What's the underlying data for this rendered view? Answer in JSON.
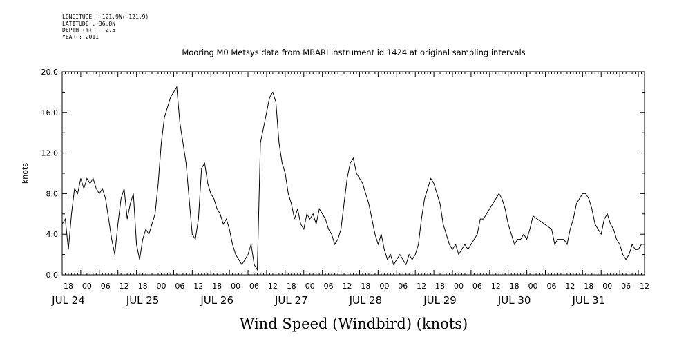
{
  "header_lines": [
    "LONGITUDE : 121.9W(-121.9)",
    "LATITUDE : 36.8N",
    "DEPTH (m) : -2.5",
    "YEAR : 2011"
  ],
  "chart_data": {
    "type": "line",
    "title": "Mooring M0 Metsys data from MBARI instrument id 1424 at original sampling intervals",
    "xlabel": "Wind Speed (Windbird) (knots)",
    "ylabel": "knots",
    "xlim_hours": [
      0,
      188
    ],
    "ylim": [
      0,
      20
    ],
    "y_ticks": [
      "0.0",
      "4.0",
      "8.0",
      "12.0",
      "16.0",
      "20.0"
    ],
    "x_hour_ticks": [
      "18",
      "00",
      "06",
      "12",
      "18",
      "00",
      "06",
      "12",
      "18",
      "00",
      "06",
      "12",
      "18",
      "00",
      "06",
      "12",
      "18",
      "00",
      "06",
      "12",
      "18",
      "00",
      "06",
      "12",
      "18",
      "00",
      "06",
      "12",
      "18",
      "00",
      "06",
      "12"
    ],
    "x_day_labels": [
      "JUL 24",
      "JUL 25",
      "JUL 26",
      "JUL 27",
      "JUL 28",
      "JUL 29",
      "JUL 30",
      "JUL 31"
    ],
    "series": [
      {
        "values": [
          [
            0,
            5.0
          ],
          [
            1,
            5.5
          ],
          [
            2,
            2.5
          ],
          [
            3,
            6.0
          ],
          [
            4,
            8.5
          ],
          [
            5,
            8.0
          ],
          [
            6,
            9.5
          ],
          [
            7,
            8.5
          ],
          [
            8,
            9.5
          ],
          [
            9,
            9.0
          ],
          [
            10,
            9.5
          ],
          [
            11,
            8.5
          ],
          [
            12,
            8.0
          ],
          [
            13,
            8.5
          ],
          [
            14,
            7.5
          ],
          [
            15,
            5.5
          ],
          [
            16,
            3.5
          ],
          [
            17,
            2.0
          ],
          [
            18,
            5.0
          ],
          [
            19,
            7.5
          ],
          [
            20,
            8.5
          ],
          [
            21,
            5.5
          ],
          [
            22,
            7.0
          ],
          [
            23,
            8.0
          ],
          [
            24,
            3.0
          ],
          [
            25,
            1.5
          ],
          [
            26,
            3.5
          ],
          [
            27,
            4.5
          ],
          [
            28,
            4.0
          ],
          [
            29,
            5.0
          ],
          [
            30,
            6.0
          ],
          [
            31,
            9.0
          ],
          [
            32,
            13.0
          ],
          [
            33,
            15.5
          ],
          [
            34,
            16.5
          ],
          [
            35,
            17.5
          ],
          [
            36,
            18.0
          ],
          [
            37,
            18.5
          ],
          [
            38,
            15.0
          ],
          [
            39,
            13.0
          ],
          [
            40,
            11.0
          ],
          [
            41,
            7.5
          ],
          [
            42,
            4.0
          ],
          [
            43,
            3.5
          ],
          [
            44,
            5.5
          ],
          [
            45,
            10.5
          ],
          [
            46,
            11.0
          ],
          [
            47,
            9.0
          ],
          [
            48,
            8.0
          ],
          [
            49,
            7.5
          ],
          [
            50,
            6.5
          ],
          [
            51,
            6.0
          ],
          [
            52,
            5.0
          ],
          [
            53,
            5.5
          ],
          [
            54,
            4.5
          ],
          [
            55,
            3.0
          ],
          [
            56,
            2.0
          ],
          [
            57,
            1.5
          ],
          [
            58,
            1.0
          ],
          [
            59,
            1.5
          ],
          [
            60,
            2.0
          ],
          [
            61,
            3.0
          ],
          [
            62,
            1.0
          ],
          [
            63,
            0.5
          ],
          [
            64,
            13.0
          ],
          [
            65,
            14.5
          ],
          [
            66,
            16.0
          ],
          [
            67,
            17.5
          ],
          [
            68,
            18.0
          ],
          [
            69,
            17.0
          ],
          [
            70,
            13.0
          ],
          [
            71,
            11.0
          ],
          [
            72,
            10.0
          ],
          [
            73,
            8.0
          ],
          [
            74,
            7.0
          ],
          [
            75,
            5.5
          ],
          [
            76,
            6.5
          ],
          [
            77,
            5.0
          ],
          [
            78,
            4.5
          ],
          [
            79,
            6.0
          ],
          [
            80,
            5.5
          ],
          [
            81,
            6.0
          ],
          [
            82,
            5.0
          ],
          [
            83,
            6.5
          ],
          [
            84,
            6.0
          ],
          [
            85,
            5.5
          ],
          [
            86,
            4.5
          ],
          [
            87,
            4.0
          ],
          [
            88,
            3.0
          ],
          [
            89,
            3.5
          ],
          [
            90,
            4.5
          ],
          [
            91,
            7.0
          ],
          [
            92,
            9.5
          ],
          [
            93,
            11.0
          ],
          [
            94,
            11.5
          ],
          [
            95,
            10.0
          ],
          [
            96,
            9.5
          ],
          [
            97,
            9.0
          ],
          [
            98,
            8.0
          ],
          [
            99,
            7.0
          ],
          [
            100,
            5.5
          ],
          [
            101,
            4.0
          ],
          [
            102,
            3.0
          ],
          [
            103,
            4.0
          ],
          [
            104,
            2.5
          ],
          [
            105,
            1.5
          ],
          [
            106,
            2.0
          ],
          [
            107,
            1.0
          ],
          [
            108,
            1.5
          ],
          [
            109,
            2.0
          ],
          [
            110,
            1.5
          ],
          [
            111,
            1.0
          ],
          [
            112,
            2.0
          ],
          [
            113,
            1.5
          ],
          [
            114,
            2.0
          ],
          [
            115,
            3.0
          ],
          [
            116,
            5.5
          ],
          [
            117,
            7.5
          ],
          [
            118,
            8.5
          ],
          [
            119,
            9.5
          ],
          [
            120,
            9.0
          ],
          [
            121,
            8.0
          ],
          [
            122,
            7.0
          ],
          [
            123,
            5.0
          ],
          [
            124,
            4.0
          ],
          [
            125,
            3.0
          ],
          [
            126,
            2.5
          ],
          [
            127,
            3.0
          ],
          [
            128,
            2.0
          ],
          [
            129,
            2.5
          ],
          [
            130,
            3.0
          ],
          [
            131,
            2.5
          ],
          [
            132,
            3.0
          ],
          [
            133,
            3.5
          ],
          [
            134,
            4.0
          ],
          [
            135,
            5.5
          ],
          [
            136,
            5.5
          ],
          [
            137,
            6.0
          ],
          [
            138,
            6.5
          ],
          [
            139,
            7.0
          ],
          [
            140,
            7.5
          ],
          [
            141,
            8.0
          ],
          [
            142,
            7.5
          ],
          [
            143,
            6.5
          ],
          [
            144,
            5.0
          ],
          [
            145,
            4.0
          ],
          [
            146,
            3.0
          ],
          [
            147,
            3.5
          ],
          [
            148,
            3.5
          ],
          [
            149,
            4.0
          ],
          [
            150,
            3.5
          ],
          [
            151,
            4.5
          ],
          [
            152,
            5.8
          ],
          [
            158,
            4.5
          ],
          [
            159,
            3.0
          ],
          [
            160,
            3.5
          ],
          [
            161,
            3.5
          ],
          [
            162,
            3.5
          ],
          [
            163,
            3.0
          ],
          [
            164,
            4.5
          ],
          [
            165,
            5.5
          ],
          [
            166,
            7.0
          ],
          [
            167,
            7.5
          ],
          [
            168,
            8.0
          ],
          [
            169,
            8.0
          ],
          [
            170,
            7.5
          ],
          [
            171,
            6.5
          ],
          [
            172,
            5.0
          ],
          [
            173,
            4.5
          ],
          [
            174,
            4.0
          ],
          [
            175,
            5.5
          ],
          [
            176,
            6.0
          ],
          [
            177,
            5.0
          ],
          [
            178,
            4.5
          ],
          [
            179,
            3.5
          ],
          [
            180,
            3.0
          ],
          [
            181,
            2.0
          ],
          [
            182,
            1.5
          ],
          [
            183,
            2.0
          ],
          [
            184,
            3.0
          ],
          [
            185,
            2.5
          ],
          [
            186,
            2.5
          ],
          [
            187,
            3.0
          ],
          [
            188,
            3.0
          ]
        ]
      }
    ]
  }
}
